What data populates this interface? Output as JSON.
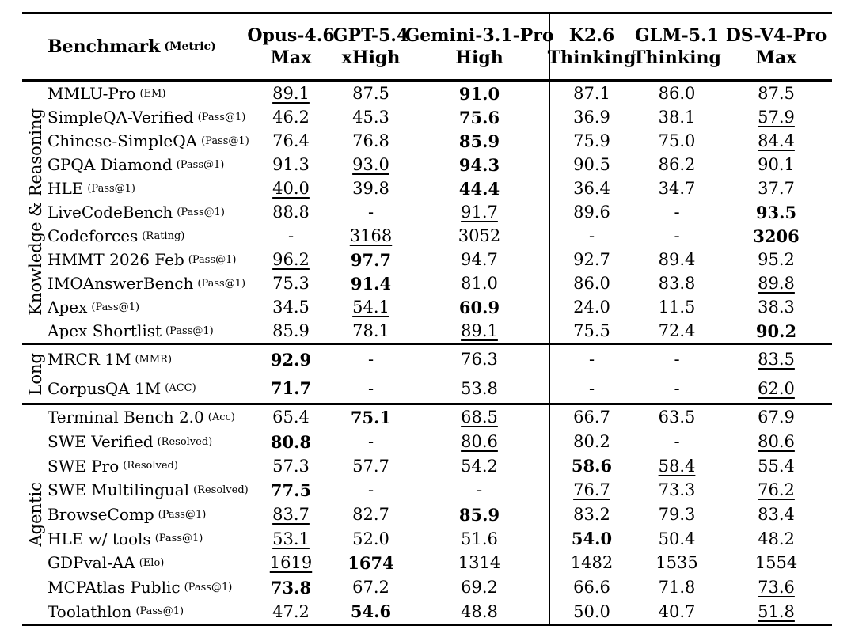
{
  "colors": {
    "text": "#000000",
    "background": "#ffffff"
  },
  "header": {
    "benchmark_label": "Benchmark",
    "benchmark_metric": "(Metric)",
    "columns": [
      {
        "model": "Opus-4.6",
        "variant": "Max"
      },
      {
        "model": "GPT-5.4",
        "variant": "xHigh"
      },
      {
        "model": "Gemini-3.1-Pro",
        "variant": "High"
      },
      {
        "model": "K2.6",
        "variant": "Thinking"
      },
      {
        "model": "GLM-5.1",
        "variant": "Thinking"
      },
      {
        "model": "DS-V4-Pro",
        "variant": "Max"
      }
    ]
  },
  "sections": [
    {
      "group": "Knowledge & Reasoning",
      "rows": [
        {
          "name": "MMLU-Pro",
          "metric": "(EM)",
          "values": [
            {
              "v": "89.1",
              "s": "u"
            },
            {
              "v": "87.5",
              "s": ""
            },
            {
              "v": "91.0",
              "s": "b"
            },
            {
              "v": "87.1",
              "s": ""
            },
            {
              "v": "86.0",
              "s": ""
            },
            {
              "v": "87.5",
              "s": ""
            }
          ]
        },
        {
          "name": "SimpleQA-Verified",
          "metric": "(Pass@1)",
          "values": [
            {
              "v": "46.2",
              "s": ""
            },
            {
              "v": "45.3",
              "s": ""
            },
            {
              "v": "75.6",
              "s": "b"
            },
            {
              "v": "36.9",
              "s": ""
            },
            {
              "v": "38.1",
              "s": ""
            },
            {
              "v": "57.9",
              "s": "u"
            }
          ]
        },
        {
          "name": "Chinese-SimpleQA",
          "metric": "(Pass@1)",
          "values": [
            {
              "v": "76.4",
              "s": ""
            },
            {
              "v": "76.8",
              "s": ""
            },
            {
              "v": "85.9",
              "s": "b"
            },
            {
              "v": "75.9",
              "s": ""
            },
            {
              "v": "75.0",
              "s": ""
            },
            {
              "v": "84.4",
              "s": "u"
            }
          ]
        },
        {
          "name": "GPQA Diamond",
          "metric": "(Pass@1)",
          "values": [
            {
              "v": "91.3",
              "s": ""
            },
            {
              "v": "93.0",
              "s": "u"
            },
            {
              "v": "94.3",
              "s": "b"
            },
            {
              "v": "90.5",
              "s": ""
            },
            {
              "v": "86.2",
              "s": ""
            },
            {
              "v": "90.1",
              "s": ""
            }
          ]
        },
        {
          "name": "HLE",
          "metric": "(Pass@1)",
          "values": [
            {
              "v": "40.0",
              "s": "u"
            },
            {
              "v": "39.8",
              "s": ""
            },
            {
              "v": "44.4",
              "s": "b"
            },
            {
              "v": "36.4",
              "s": ""
            },
            {
              "v": "34.7",
              "s": ""
            },
            {
              "v": "37.7",
              "s": ""
            }
          ]
        },
        {
          "name": "LiveCodeBench",
          "metric": "(Pass@1)",
          "values": [
            {
              "v": "88.8",
              "s": ""
            },
            {
              "v": "-",
              "s": ""
            },
            {
              "v": "91.7",
              "s": "u"
            },
            {
              "v": "89.6",
              "s": ""
            },
            {
              "v": "-",
              "s": ""
            },
            {
              "v": "93.5",
              "s": "b"
            }
          ]
        },
        {
          "name": "Codeforces",
          "metric": "(Rating)",
          "values": [
            {
              "v": "-",
              "s": ""
            },
            {
              "v": "3168",
              "s": "u"
            },
            {
              "v": "3052",
              "s": ""
            },
            {
              "v": "-",
              "s": ""
            },
            {
              "v": "-",
              "s": ""
            },
            {
              "v": "3206",
              "s": "b"
            }
          ]
        },
        {
          "name": "HMMT 2026 Feb",
          "metric": "(Pass@1)",
          "values": [
            {
              "v": "96.2",
              "s": "u"
            },
            {
              "v": "97.7",
              "s": "b"
            },
            {
              "v": "94.7",
              "s": ""
            },
            {
              "v": "92.7",
              "s": ""
            },
            {
              "v": "89.4",
              "s": ""
            },
            {
              "v": "95.2",
              "s": ""
            }
          ]
        },
        {
          "name": "IMOAnswerBench",
          "metric": "(Pass@1)",
          "values": [
            {
              "v": "75.3",
              "s": ""
            },
            {
              "v": "91.4",
              "s": "b"
            },
            {
              "v": "81.0",
              "s": ""
            },
            {
              "v": "86.0",
              "s": ""
            },
            {
              "v": "83.8",
              "s": ""
            },
            {
              "v": "89.8",
              "s": "u"
            }
          ]
        },
        {
          "name": "Apex",
          "metric": "(Pass@1)",
          "values": [
            {
              "v": "34.5",
              "s": ""
            },
            {
              "v": "54.1",
              "s": "u"
            },
            {
              "v": "60.9",
              "s": "b"
            },
            {
              "v": "24.0",
              "s": ""
            },
            {
              "v": "11.5",
              "s": ""
            },
            {
              "v": "38.3",
              "s": ""
            }
          ]
        },
        {
          "name": "Apex Shortlist",
          "metric": "(Pass@1)",
          "values": [
            {
              "v": "85.9",
              "s": ""
            },
            {
              "v": "78.1",
              "s": ""
            },
            {
              "v": "89.1",
              "s": "u"
            },
            {
              "v": "75.5",
              "s": ""
            },
            {
              "v": "72.4",
              "s": ""
            },
            {
              "v": "90.2",
              "s": "b"
            }
          ]
        }
      ]
    },
    {
      "group": "Long",
      "rows": [
        {
          "name": "MRCR 1M",
          "metric": "(MMR)",
          "values": [
            {
              "v": "92.9",
              "s": "b"
            },
            {
              "v": "-",
              "s": ""
            },
            {
              "v": "76.3",
              "s": ""
            },
            {
              "v": "-",
              "s": ""
            },
            {
              "v": "-",
              "s": ""
            },
            {
              "v": "83.5",
              "s": "u"
            }
          ]
        },
        {
          "name": "CorpusQA 1M",
          "metric": "(ACC)",
          "values": [
            {
              "v": "71.7",
              "s": "b"
            },
            {
              "v": "-",
              "s": ""
            },
            {
              "v": "53.8",
              "s": ""
            },
            {
              "v": "-",
              "s": ""
            },
            {
              "v": "-",
              "s": ""
            },
            {
              "v": "62.0",
              "s": "u"
            }
          ]
        }
      ]
    },
    {
      "group": "Agentic",
      "rows": [
        {
          "name": "Terminal Bench 2.0",
          "metric": "(Acc)",
          "values": [
            {
              "v": "65.4",
              "s": ""
            },
            {
              "v": "75.1",
              "s": "b"
            },
            {
              "v": "68.5",
              "s": "u"
            },
            {
              "v": "66.7",
              "s": ""
            },
            {
              "v": "63.5",
              "s": ""
            },
            {
              "v": "67.9",
              "s": ""
            }
          ]
        },
        {
          "name": "SWE Verified",
          "metric": "(Resolved)",
          "values": [
            {
              "v": "80.8",
              "s": "b"
            },
            {
              "v": "-",
              "s": ""
            },
            {
              "v": "80.6",
              "s": "u"
            },
            {
              "v": "80.2",
              "s": ""
            },
            {
              "v": "-",
              "s": ""
            },
            {
              "v": "80.6",
              "s": "u"
            }
          ]
        },
        {
          "name": "SWE Pro",
          "metric": "(Resolved)",
          "values": [
            {
              "v": "57.3",
              "s": ""
            },
            {
              "v": "57.7",
              "s": ""
            },
            {
              "v": "54.2",
              "s": ""
            },
            {
              "v": "58.6",
              "s": "b"
            },
            {
              "v": "58.4",
              "s": "u"
            },
            {
              "v": "55.4",
              "s": ""
            }
          ]
        },
        {
          "name": "SWE Multilingual",
          "metric": "(Resolved)",
          "values": [
            {
              "v": "77.5",
              "s": "b"
            },
            {
              "v": "-",
              "s": ""
            },
            {
              "v": "-",
              "s": ""
            },
            {
              "v": "76.7",
              "s": "u"
            },
            {
              "v": "73.3",
              "s": ""
            },
            {
              "v": "76.2",
              "s": "u"
            }
          ]
        },
        {
          "name": "BrowseComp",
          "metric": "(Pass@1)",
          "values": [
            {
              "v": "83.7",
              "s": "u"
            },
            {
              "v": "82.7",
              "s": ""
            },
            {
              "v": "85.9",
              "s": "b"
            },
            {
              "v": "83.2",
              "s": ""
            },
            {
              "v": "79.3",
              "s": ""
            },
            {
              "v": "83.4",
              "s": ""
            }
          ]
        },
        {
          "name": "HLE w/ tools",
          "metric": "(Pass@1)",
          "values": [
            {
              "v": "53.1",
              "s": "u"
            },
            {
              "v": "52.0",
              "s": ""
            },
            {
              "v": "51.6",
              "s": ""
            },
            {
              "v": "54.0",
              "s": "b"
            },
            {
              "v": "50.4",
              "s": ""
            },
            {
              "v": "48.2",
              "s": ""
            }
          ]
        },
        {
          "name": "GDPval-AA",
          "metric": "(Elo)",
          "values": [
            {
              "v": "1619",
              "s": "u"
            },
            {
              "v": "1674",
              "s": "b"
            },
            {
              "v": "1314",
              "s": ""
            },
            {
              "v": "1482",
              "s": ""
            },
            {
              "v": "1535",
              "s": ""
            },
            {
              "v": "1554",
              "s": ""
            }
          ]
        },
        {
          "name": "MCPAtlas Public",
          "metric": "(Pass@1)",
          "values": [
            {
              "v": "73.8",
              "s": "b"
            },
            {
              "v": "67.2",
              "s": ""
            },
            {
              "v": "69.2",
              "s": ""
            },
            {
              "v": "66.6",
              "s": ""
            },
            {
              "v": "71.8",
              "s": ""
            },
            {
              "v": "73.6",
              "s": "u"
            }
          ]
        },
        {
          "name": "Toolathlon",
          "metric": "(Pass@1)",
          "values": [
            {
              "v": "47.2",
              "s": ""
            },
            {
              "v": "54.6",
              "s": "b"
            },
            {
              "v": "48.8",
              "s": ""
            },
            {
              "v": "50.0",
              "s": ""
            },
            {
              "v": "40.7",
              "s": ""
            },
            {
              "v": "51.8",
              "s": "u"
            }
          ]
        }
      ]
    }
  ]
}
